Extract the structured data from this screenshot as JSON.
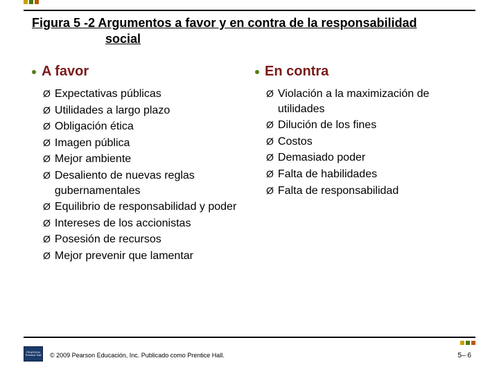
{
  "accent_colors": [
    "#c8a000",
    "#4a7a00",
    "#c05800"
  ],
  "title_line1": "Figura 5 -2  Argumentos a favor y en contra de la responsabilidad",
  "title_line2": "social",
  "favor": {
    "dot_color": "#5a7a1a",
    "label_color": "#7a1a1a",
    "label": "A favor",
    "items": [
      "Expectativas públicas",
      "Utilidades a largo plazo",
      "Obligación ética",
      "Imagen pública",
      "Mejor ambiente",
      "Desaliento de nuevas reglas gubernamentales",
      "Equilibrio de responsabilidad y poder",
      "Intereses de los accionistas",
      "Posesión de recursos",
      "Mejor prevenir que lamentar"
    ]
  },
  "contra": {
    "dot_color": "#5a7a1a",
    "label_color": "#7a1a1a",
    "label": "En contra",
    "items": [
      "Violación a la maximización de utilidades",
      "Dilución de los fines",
      "Costos",
      "Demasiado poder",
      "Falta de habilidades",
      "Falta de responsabilidad"
    ]
  },
  "arrow_char": "Ø",
  "footer": {
    "copyright": "© 2009 Pearson Educación, Inc. Publicado como Prentice Hall.",
    "page": "5– 6",
    "logo_top": "PEARSON",
    "logo_bottom": "Prentice Hall"
  }
}
